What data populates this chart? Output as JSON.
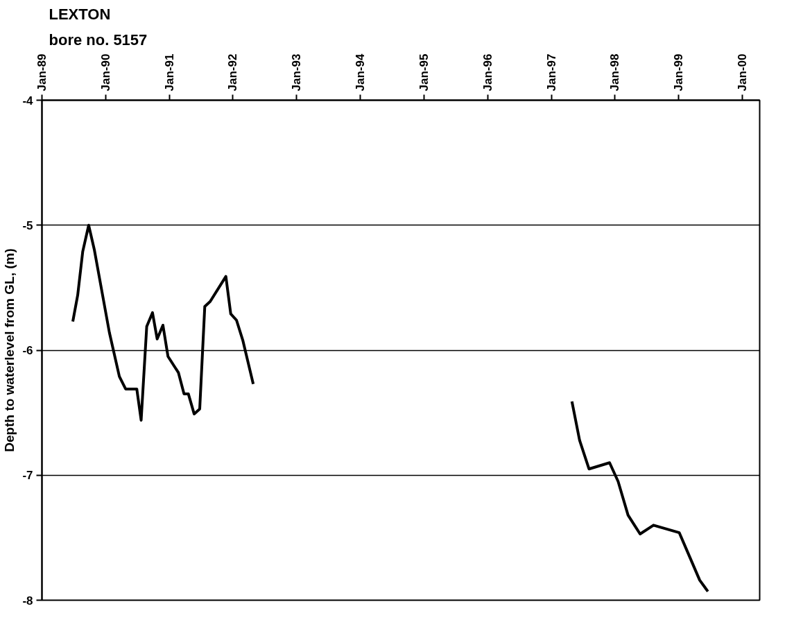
{
  "chart_data": {
    "type": "line",
    "title": "LEXTON",
    "subtitle": "bore no. 5157",
    "ylabel": "Depth to waterlevel from GL, (m)",
    "xlim": [
      "1989-01-01",
      "2000-04-10"
    ],
    "ylim": [
      -8,
      -4
    ],
    "yticks": [
      -8,
      -7,
      -6,
      -5,
      -4
    ],
    "xticks": [
      {
        "value": "1989-01-01",
        "label": "Jan-89"
      },
      {
        "value": "1990-01-01",
        "label": "Jan-90"
      },
      {
        "value": "1991-01-01",
        "label": "Jan-91"
      },
      {
        "value": "1992-01-01",
        "label": "Jan-92"
      },
      {
        "value": "1993-01-01",
        "label": "Jan-93"
      },
      {
        "value": "1994-01-01",
        "label": "Jan-94"
      },
      {
        "value": "1995-01-01",
        "label": "Jan-95"
      },
      {
        "value": "1996-01-01",
        "label": "Jan-96"
      },
      {
        "value": "1997-01-01",
        "label": "Jan-97"
      },
      {
        "value": "1998-01-01",
        "label": "Jan-98"
      },
      {
        "value": "1999-01-01",
        "label": "Jan-99"
      },
      {
        "value": "2000-01-01",
        "label": "Jan-00"
      }
    ],
    "grid": "y",
    "marker": "none",
    "line_style": "solid",
    "series": [
      {
        "color": "#000000",
        "x": [
          "1989-06-27",
          "1989-07-25",
          "1989-08-23",
          "1989-09-26",
          "1989-10-29",
          "1990-01-23",
          "1990-03-21",
          "1990-04-26",
          "1990-06-29",
          "1990-07-24",
          "1990-08-25",
          "1990-09-27",
          "1990-10-24",
          "1990-11-26",
          "1990-12-25",
          "1991-02-23",
          "1991-03-27",
          "1991-04-21",
          "1991-05-24",
          "1991-06-25",
          "1991-07-24",
          "1991-08-24",
          "1991-11-22",
          "1991-12-20",
          "1992-01-22",
          "1992-02-27",
          "1992-04-27"
        ],
        "values": [
          -5.77,
          -5.56,
          -5.21,
          -5.0,
          -5.2,
          -5.86,
          -6.21,
          -6.31,
          -6.31,
          -6.56,
          -5.81,
          -5.7,
          -5.91,
          -5.8,
          -6.05,
          -6.18,
          -6.35,
          -6.35,
          -6.51,
          -6.47,
          -5.65,
          -5.61,
          -5.41,
          -5.71,
          -5.76,
          -5.92,
          -6.27
        ]
      },
      {
        "color": "#000000",
        "x": [
          "1997-04-29",
          "1997-06-12",
          "1997-08-05",
          "1997-12-01",
          "1998-01-19",
          "1998-03-17",
          "1998-05-25",
          "1998-08-10",
          "1999-01-05",
          "1999-02-17",
          "1999-05-02",
          "1999-06-18"
        ],
        "values": [
          -6.41,
          -6.72,
          -6.95,
          -6.9,
          -7.05,
          -7.32,
          -7.47,
          -7.4,
          -7.46,
          -7.6,
          -7.84,
          -7.93
        ]
      }
    ]
  }
}
